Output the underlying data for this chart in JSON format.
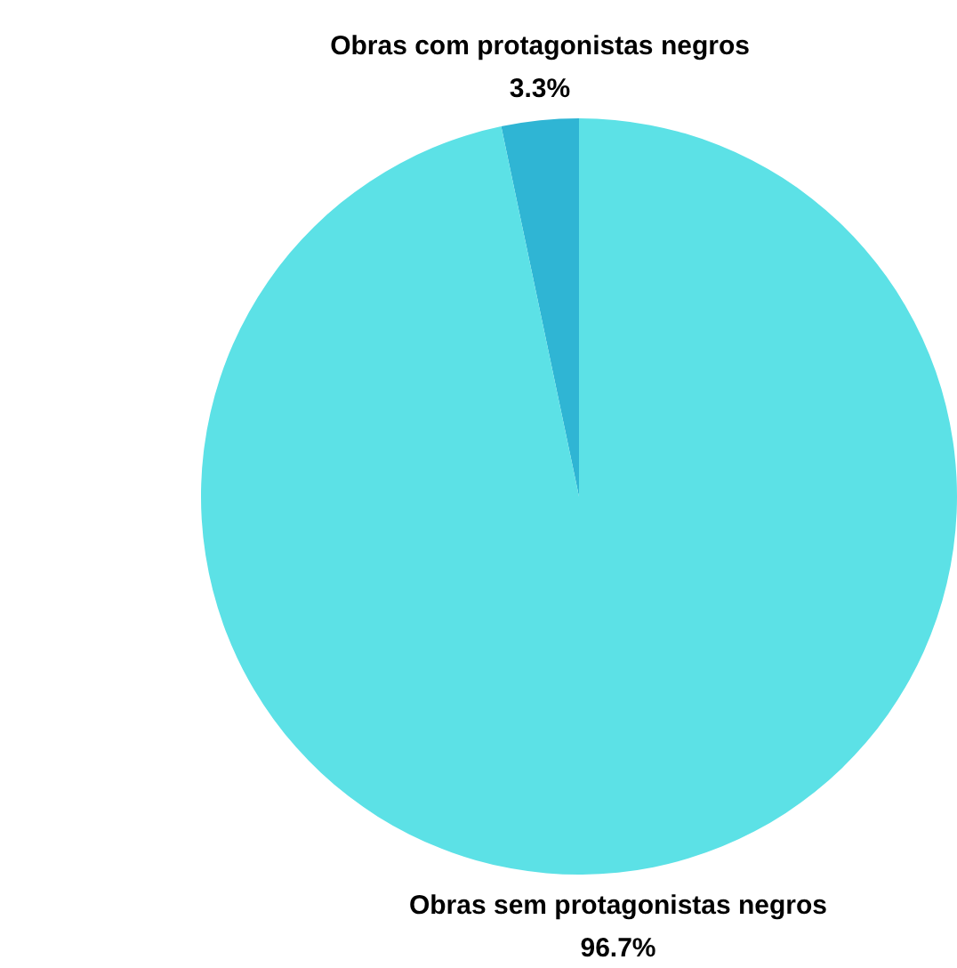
{
  "chart_data": {
    "type": "pie",
    "categories": [
      "Obras com protagonistas negros",
      "Obras sem protagonistas negros"
    ],
    "values": [
      3.3,
      96.7
    ],
    "colors": [
      "#2fb5d4",
      "#5ce1e6"
    ],
    "value_labels": [
      "3.3%",
      "96.7%"
    ],
    "legend": false
  }
}
